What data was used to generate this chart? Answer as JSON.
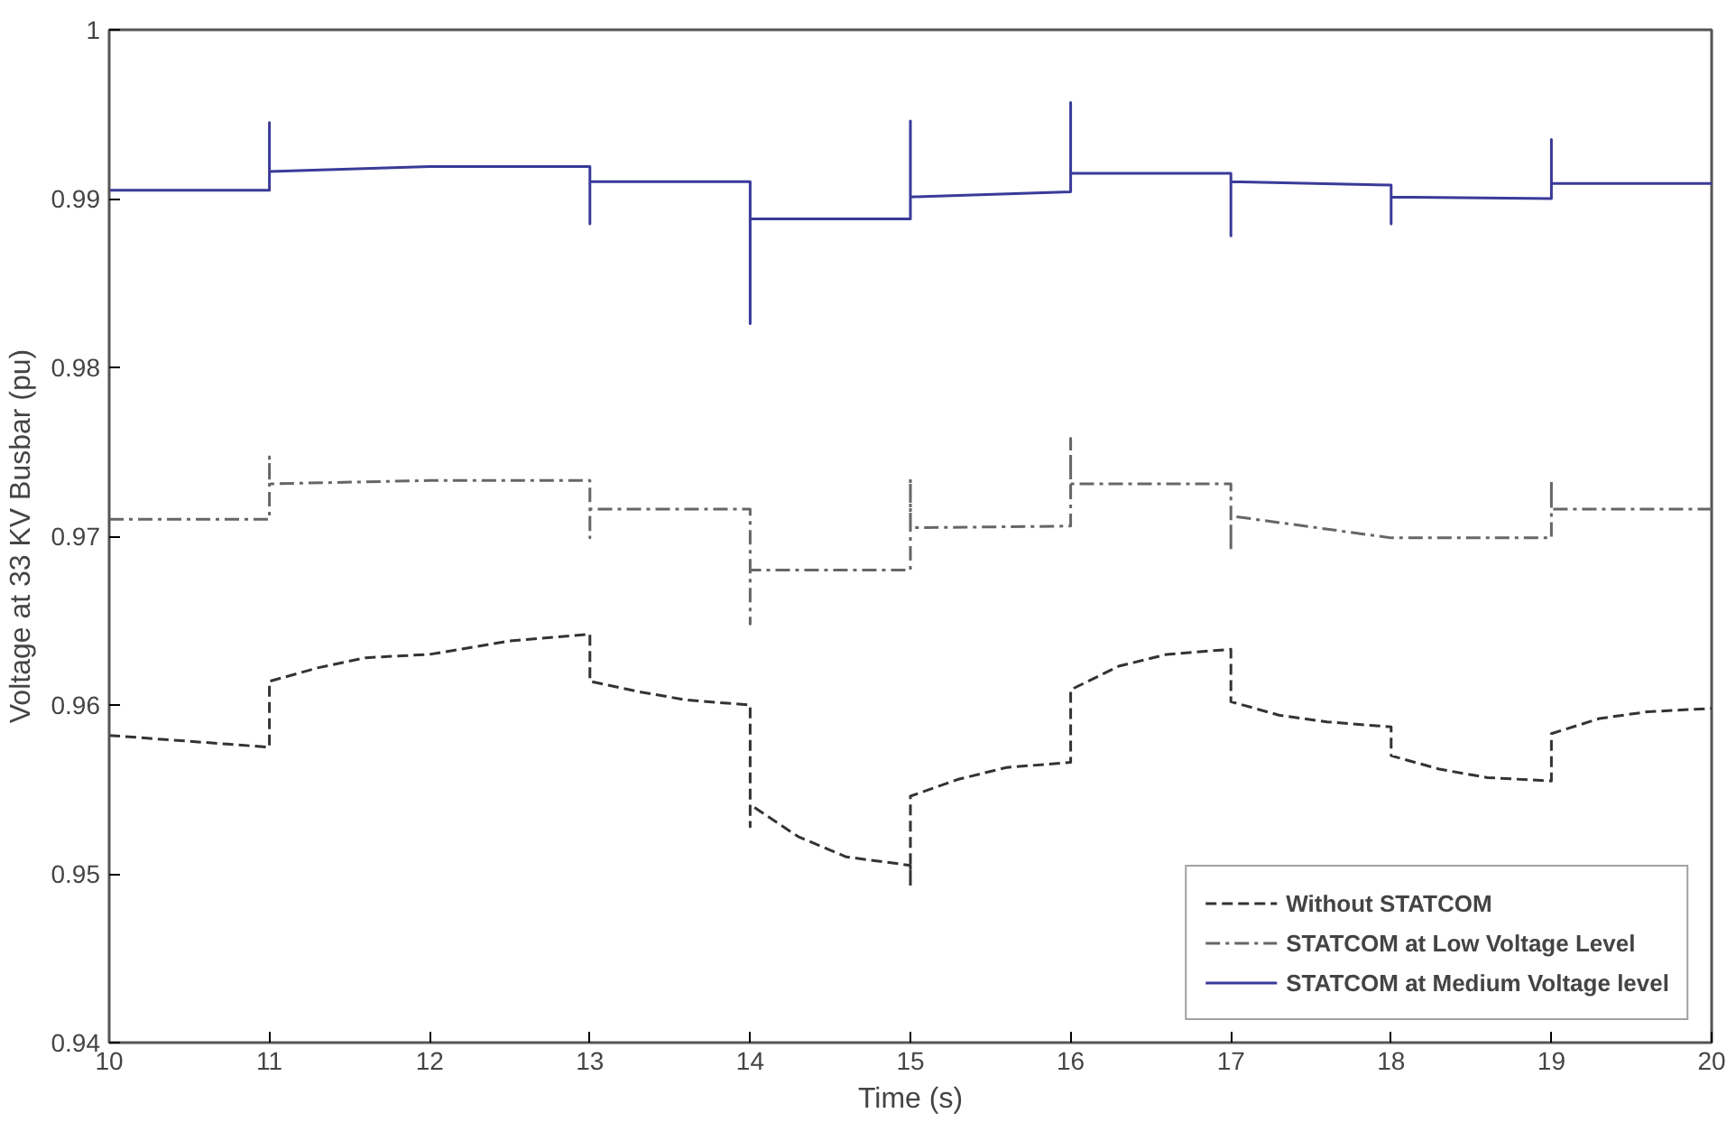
{
  "chart_data": {
    "type": "line",
    "xlabel": "Time (s)",
    "ylabel": "Voltage at 33 KV Busbar (pu)",
    "xlim": [
      10,
      20
    ],
    "ylim": [
      0.94,
      1
    ],
    "xticks": [
      10,
      11,
      12,
      13,
      14,
      15,
      16,
      17,
      18,
      19,
      20
    ],
    "yticks": [
      0.94,
      0.95,
      0.96,
      0.97,
      0.98,
      0.99,
      1
    ],
    "grid": false,
    "legend": "bottom right",
    "series": [
      {
        "name": "Without STATCOM",
        "color": "#333333",
        "line_style": "dashed",
        "x": [
          10,
          11,
          11,
          11,
          11.3,
          11.6,
          12,
          12.5,
          13,
          13,
          13.3,
          13.6,
          14,
          14,
          14,
          14.3,
          14.6,
          15,
          15,
          15,
          15.3,
          15.6,
          16,
          16,
          16.3,
          16.6,
          17,
          17,
          17.3,
          17.6,
          18,
          18,
          18.3,
          18.6,
          19,
          19,
          19.3,
          19.6,
          20
        ],
        "values": [
          0.9582,
          0.9575,
          0.9614,
          0.9614,
          0.9622,
          0.9628,
          0.963,
          0.9638,
          0.9642,
          0.9614,
          0.9608,
          0.9603,
          0.96,
          0.9528,
          0.9541,
          0.9522,
          0.951,
          0.9505,
          0.9493,
          0.9546,
          0.9556,
          0.9563,
          0.9566,
          0.9609,
          0.9623,
          0.963,
          0.9633,
          0.9602,
          0.9594,
          0.959,
          0.9587,
          0.957,
          0.9562,
          0.9557,
          0.9555,
          0.9583,
          0.9592,
          0.9596,
          0.9598
        ]
      },
      {
        "name": "STATCOM at Low Voltage Level",
        "color": "#666666",
        "line_style": "dashdot",
        "x": [
          10,
          11,
          11,
          11,
          12,
          13,
          13,
          13,
          14,
          14,
          14,
          15,
          15,
          15,
          16,
          16,
          16,
          17,
          17,
          17,
          18,
          18,
          19,
          19,
          19,
          20
        ],
        "values": [
          0.971,
          0.971,
          0.9747,
          0.9731,
          0.9733,
          0.9733,
          0.9699,
          0.9716,
          0.9716,
          0.9648,
          0.968,
          0.968,
          0.9734,
          0.9705,
          0.9706,
          0.9758,
          0.9731,
          0.9731,
          0.9691,
          0.9712,
          0.9699,
          0.9699,
          0.9699,
          0.9733,
          0.9716,
          0.9716
        ]
      },
      {
        "name": "STATCOM at Medium Voltage level",
        "color": "#3a3a9a",
        "line_style": "solid",
        "x": [
          10,
          11,
          11,
          11,
          12,
          13,
          13,
          13,
          14,
          14,
          14,
          15,
          15,
          15,
          16,
          16,
          16,
          17,
          17,
          17,
          18,
          18,
          18,
          19,
          19,
          19,
          20
        ],
        "values": [
          0.9905,
          0.9905,
          0.9945,
          0.9916,
          0.9919,
          0.9919,
          0.9885,
          0.991,
          0.991,
          0.9826,
          0.9888,
          0.9888,
          0.9946,
          0.9901,
          0.9904,
          0.9957,
          0.9915,
          0.9915,
          0.9878,
          0.991,
          0.9908,
          0.9885,
          0.9901,
          0.99,
          0.9935,
          0.9909,
          0.9909
        ]
      }
    ]
  }
}
